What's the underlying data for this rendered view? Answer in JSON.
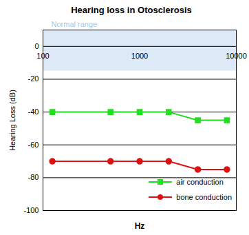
{
  "chart_data": {
    "type": "line",
    "title": "Hearing loss in Otosclerosis",
    "x_label": "Hz",
    "y_label": "Hearing Loss (dB)",
    "x": [
      125,
      500,
      1000,
      2000,
      4000,
      8000
    ],
    "series": [
      {
        "name": "air conduction",
        "color": "#22dd22",
        "marker": "square",
        "values": [
          -40,
          -40,
          -40,
          -40,
          -45,
          -45
        ]
      },
      {
        "name": "bone conduction",
        "color": "#dd1111",
        "marker": "circle",
        "values": [
          -70,
          -70,
          -70,
          -70,
          -75,
          -75
        ]
      }
    ],
    "xlim": [
      100,
      10000
    ],
    "xticks": [
      100,
      1000,
      10000
    ],
    "ylim": [
      -100,
      10
    ],
    "yticks": [
      0,
      -20,
      -40,
      -60,
      -80,
      -100
    ],
    "log": "x",
    "grid": true,
    "legend": "lower right",
    "bands": [
      {
        "label": "Normal range",
        "from": -15,
        "to": 10
      }
    ]
  }
}
